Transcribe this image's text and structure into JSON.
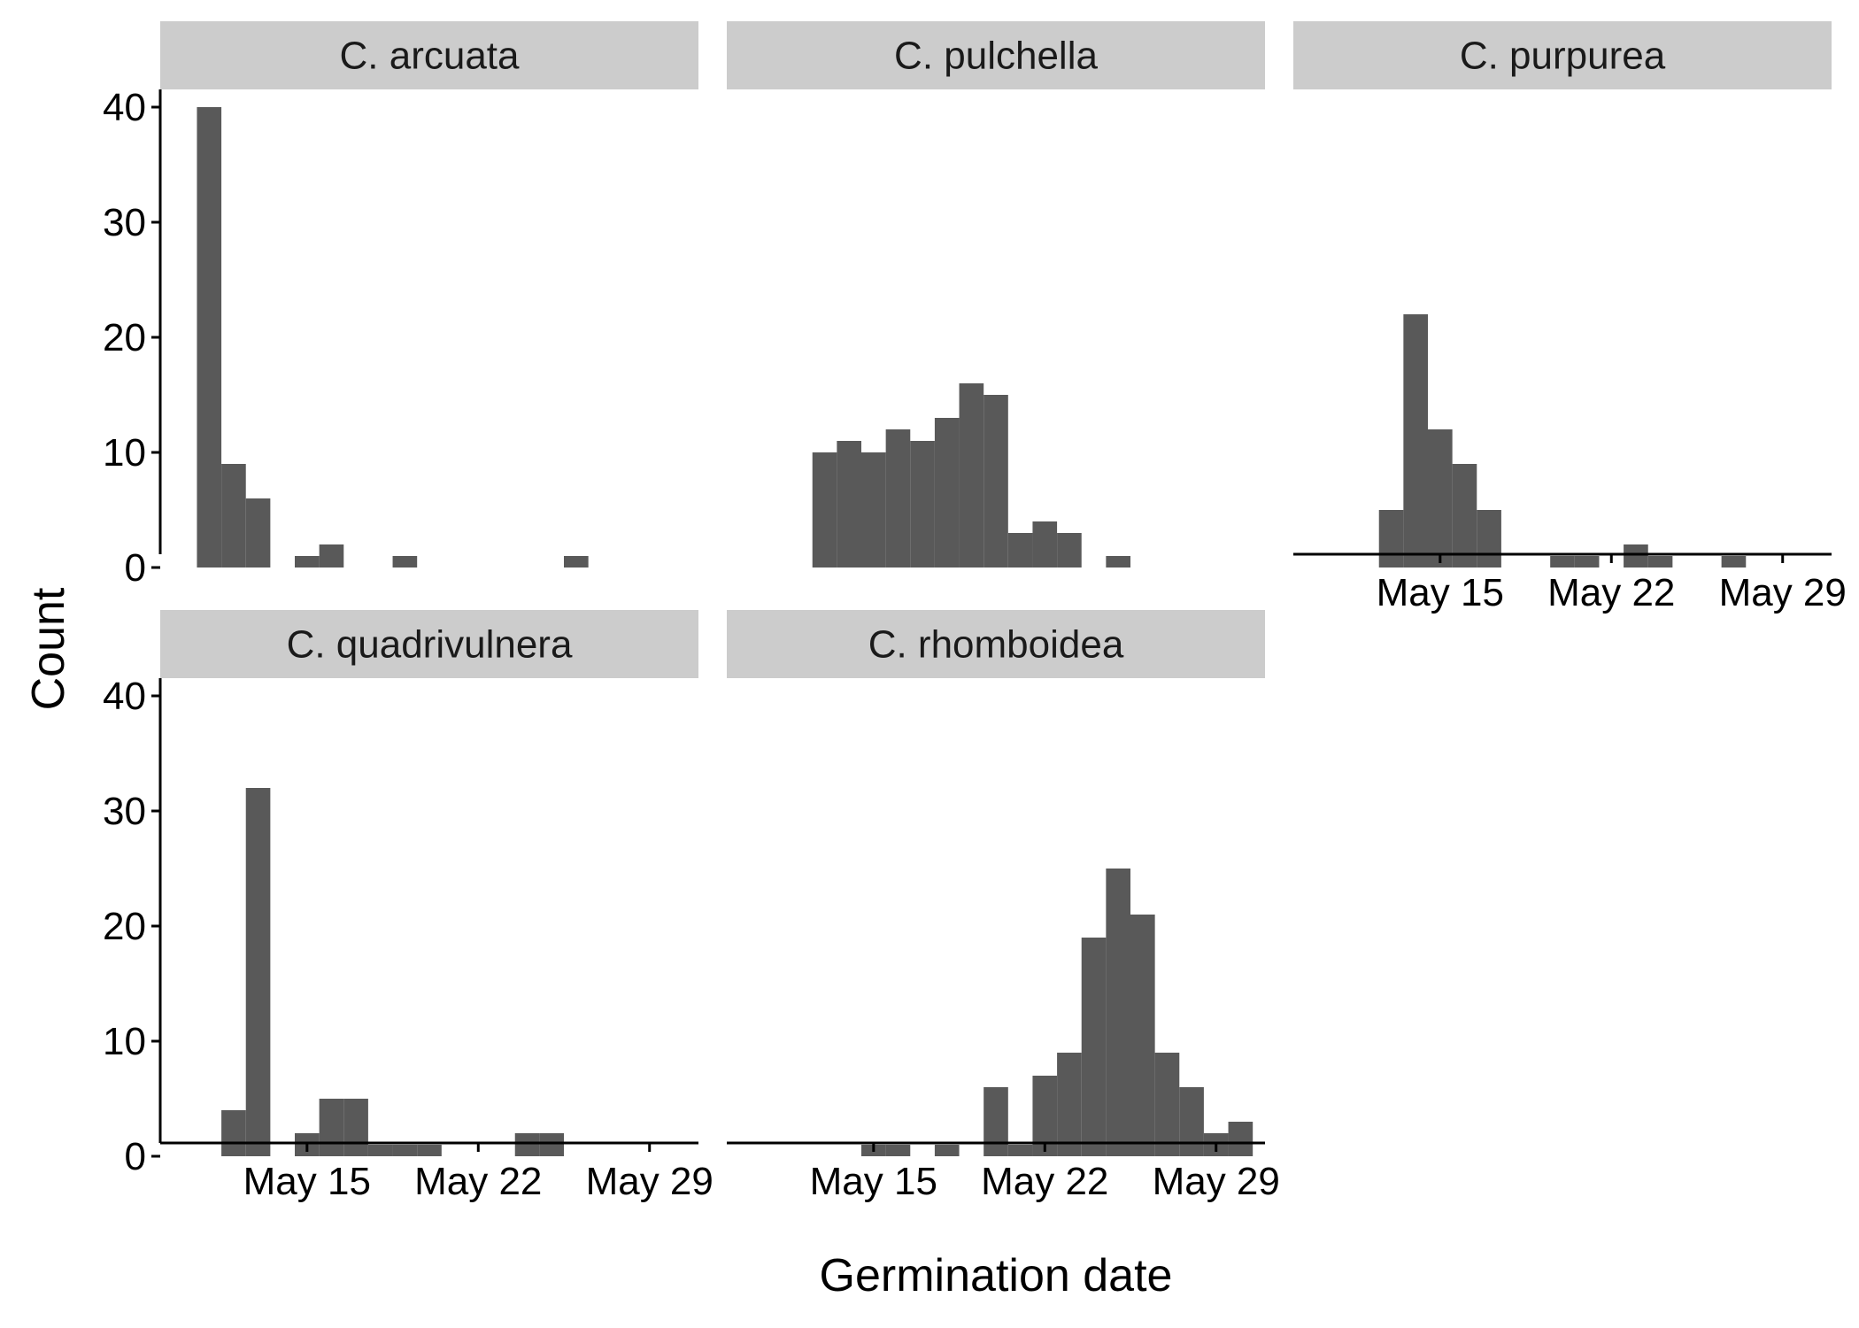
{
  "chart_data": {
    "type": "bar",
    "subtype": "faceted-histogram",
    "xlabel": "Germination date",
    "ylabel": "Count",
    "ylim": [
      0,
      40
    ],
    "y_ticks": [
      0,
      10,
      20,
      30,
      40
    ],
    "x_tick_labels": [
      "May 15",
      "May 22",
      "May 29"
    ],
    "x_tick_dates": [
      "2000-05-15",
      "2000-05-22",
      "2000-05-29"
    ],
    "x_range": [
      "2000-05-09",
      "2000-05-31"
    ],
    "grid": false,
    "bar_color": "#595959",
    "strip_color": "#cccccc",
    "facets": [
      {
        "name": "C. arcuata",
        "bins": [
          {
            "date": "2000-05-11",
            "count": 40
          },
          {
            "date": "2000-05-12",
            "count": 9
          },
          {
            "date": "2000-05-13",
            "count": 6
          },
          {
            "date": "2000-05-15",
            "count": 1
          },
          {
            "date": "2000-05-16",
            "count": 2
          },
          {
            "date": "2000-05-19",
            "count": 1
          },
          {
            "date": "2000-05-26",
            "count": 1
          }
        ]
      },
      {
        "name": "C. pulchella",
        "bins": [
          {
            "date": "2000-05-13",
            "count": 10
          },
          {
            "date": "2000-05-14",
            "count": 11
          },
          {
            "date": "2000-05-15",
            "count": 10
          },
          {
            "date": "2000-05-16",
            "count": 12
          },
          {
            "date": "2000-05-17",
            "count": 11
          },
          {
            "date": "2000-05-18",
            "count": 13
          },
          {
            "date": "2000-05-19",
            "count": 16
          },
          {
            "date": "2000-05-20",
            "count": 15
          },
          {
            "date": "2000-05-21",
            "count": 3
          },
          {
            "date": "2000-05-22",
            "count": 4
          },
          {
            "date": "2000-05-23",
            "count": 3
          },
          {
            "date": "2000-05-25",
            "count": 1
          }
        ]
      },
      {
        "name": "C. purpurea",
        "bins": [
          {
            "date": "2000-05-13",
            "count": 5
          },
          {
            "date": "2000-05-14",
            "count": 22
          },
          {
            "date": "2000-05-15",
            "count": 12
          },
          {
            "date": "2000-05-16",
            "count": 9
          },
          {
            "date": "2000-05-17",
            "count": 5
          },
          {
            "date": "2000-05-20",
            "count": 1
          },
          {
            "date": "2000-05-21",
            "count": 1
          },
          {
            "date": "2000-05-23",
            "count": 2
          },
          {
            "date": "2000-05-24",
            "count": 1
          },
          {
            "date": "2000-05-27",
            "count": 1
          }
        ]
      },
      {
        "name": "C. quadrivulnera",
        "bins": [
          {
            "date": "2000-05-12",
            "count": 4
          },
          {
            "date": "2000-05-13",
            "count": 32
          },
          {
            "date": "2000-05-15",
            "count": 2
          },
          {
            "date": "2000-05-16",
            "count": 5
          },
          {
            "date": "2000-05-17",
            "count": 5
          },
          {
            "date": "2000-05-18",
            "count": 1
          },
          {
            "date": "2000-05-19",
            "count": 1
          },
          {
            "date": "2000-05-20",
            "count": 1
          },
          {
            "date": "2000-05-24",
            "count": 2
          },
          {
            "date": "2000-05-25",
            "count": 2
          }
        ]
      },
      {
        "name": "C. rhomboidea",
        "bins": [
          {
            "date": "2000-05-15",
            "count": 1
          },
          {
            "date": "2000-05-16",
            "count": 1
          },
          {
            "date": "2000-05-18",
            "count": 1
          },
          {
            "date": "2000-05-20",
            "count": 6
          },
          {
            "date": "2000-05-21",
            "count": 1
          },
          {
            "date": "2000-05-22",
            "count": 7
          },
          {
            "date": "2000-05-23",
            "count": 9
          },
          {
            "date": "2000-05-24",
            "count": 19
          },
          {
            "date": "2000-05-25",
            "count": 25
          },
          {
            "date": "2000-05-26",
            "count": 21
          },
          {
            "date": "2000-05-27",
            "count": 9
          },
          {
            "date": "2000-05-28",
            "count": 6
          },
          {
            "date": "2000-05-29",
            "count": 2
          },
          {
            "date": "2000-05-30",
            "count": 3
          }
        ]
      }
    ]
  }
}
